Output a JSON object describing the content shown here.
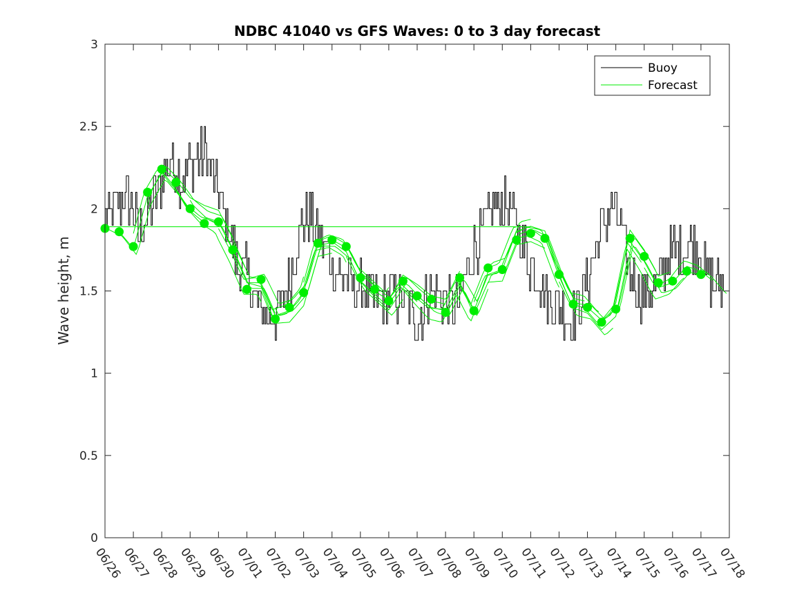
{
  "chart_data": {
    "type": "line",
    "title": "NDBC 41040 vs GFS Waves: 0 to 3 day forecast",
    "xlabel": "",
    "ylabel": "Wave height, m",
    "ylim": [
      0,
      3
    ],
    "yticks": [
      "0",
      "0.5",
      "1",
      "1.5",
      "2",
      "2.5",
      "3"
    ],
    "xticks": [
      "06/26",
      "06/27",
      "06/28",
      "06/29",
      "06/30",
      "07/01",
      "07/02",
      "07/03",
      "07/04",
      "07/05",
      "07/06",
      "07/07",
      "07/08",
      "07/09",
      "07/10",
      "07/11",
      "07/12",
      "07/13",
      "07/14",
      "07/15",
      "07/16",
      "07/17",
      "07/18"
    ],
    "x_unit": "day index from 06/26",
    "xlim": [
      0,
      22
    ],
    "legend": {
      "position": "top-right",
      "entries": [
        "Buoy",
        "Forecast"
      ]
    },
    "colors": {
      "buoy": "#000000",
      "forecast": "#00ee00"
    },
    "buoy_anchors": {
      "x": [
        0,
        0.3,
        0.6,
        0.9,
        1.2,
        1.5,
        1.8,
        2.1,
        2.3,
        2.6,
        2.9,
        3.2,
        3.5,
        3.8,
        4.1,
        4.4,
        4.7,
        5.0,
        5.3,
        5.6,
        5.9,
        6.2,
        6.5,
        6.8,
        7.1,
        7.4,
        7.7,
        8.0,
        8.3,
        8.6,
        8.9,
        9.2,
        9.5,
        9.8,
        10.1,
        10.4,
        10.7,
        11.0,
        11.3,
        11.6,
        11.9,
        12.2,
        12.5,
        12.8,
        13.1,
        13.4,
        13.7,
        14.0,
        14.3,
        14.6,
        14.9,
        15.2,
        15.5,
        15.8,
        16.1,
        16.4,
        16.7,
        17.0,
        17.3,
        17.6,
        17.9,
        18.2,
        18.5,
        18.8,
        19.1,
        19.4,
        19.7,
        20.0,
        20.3,
        20.6,
        20.9,
        21.2,
        21.5,
        21.8
      ],
      "y": [
        1.95,
        2.0,
        2.05,
        2.05,
        1.85,
        1.95,
        2.1,
        2.2,
        2.3,
        2.2,
        2.25,
        2.3,
        2.35,
        2.2,
        2.0,
        1.85,
        1.65,
        1.6,
        1.45,
        1.35,
        1.35,
        1.4,
        1.55,
        1.85,
        1.95,
        1.9,
        1.8,
        1.65,
        1.6,
        1.55,
        1.5,
        1.5,
        1.45,
        1.45,
        1.5,
        1.45,
        1.4,
        1.3,
        1.45,
        1.5,
        1.45,
        1.4,
        1.45,
        1.65,
        1.8,
        1.9,
        2.0,
        2.0,
        2.0,
        1.85,
        1.7,
        1.6,
        1.5,
        1.45,
        1.4,
        1.35,
        1.4,
        1.55,
        1.75,
        1.95,
        2.0,
        1.85,
        1.6,
        1.5,
        1.5,
        1.55,
        1.65,
        1.75,
        1.75,
        1.8,
        1.75,
        1.6,
        1.55,
        1.5
      ]
    },
    "buoy_peak_max": 2.6,
    "buoy_trough_min": 1.1,
    "forecast_anchors": {
      "x": [
        0,
        0.5,
        1.0,
        1.5,
        2.0,
        2.5,
        3.0,
        3.5,
        4.0,
        4.5,
        5.0,
        5.5,
        6.0,
        6.5,
        7.0,
        7.5,
        8.0,
        8.5,
        9.0,
        9.5,
        10.0,
        10.5,
        11.0,
        11.5,
        12.0,
        12.5,
        13.0,
        13.5,
        14.0,
        14.5,
        15.0,
        15.5,
        16.0,
        16.5,
        17.0,
        17.5,
        18.0,
        18.5,
        19.0,
        19.5,
        20.0,
        20.5,
        21.0,
        21.5,
        22.0
      ],
      "y": [
        1.88,
        1.86,
        1.77,
        2.1,
        2.25,
        2.15,
        2.02,
        1.95,
        1.92,
        1.75,
        1.55,
        1.55,
        1.35,
        1.38,
        1.48,
        1.78,
        1.8,
        1.75,
        1.58,
        1.5,
        1.42,
        1.55,
        1.47,
        1.4,
        1.38,
        1.55,
        1.38,
        1.6,
        1.63,
        1.85,
        1.87,
        1.83,
        1.6,
        1.42,
        1.4,
        1.3,
        1.38,
        1.8,
        1.68,
        1.52,
        1.55,
        1.65,
        1.62,
        1.55,
        1.45
      ]
    },
    "forecast_flat_line": {
      "x": [
        0,
        15
      ],
      "y": 1.89
    },
    "forecast_points": {
      "x": [
        0,
        0.5,
        1.0,
        1.5,
        2.0,
        2.5,
        3.0,
        3.5,
        4.0,
        4.5,
        5.0,
        5.5,
        6.0,
        6.5,
        7.0,
        7.5,
        8.0,
        8.5,
        9.0,
        9.5,
        10.0,
        10.5,
        11.0,
        11.5,
        12.0,
        12.5,
        13.0,
        13.5,
        14.0,
        14.5,
        15.0,
        15.5,
        16.0,
        16.5,
        17.0,
        17.5,
        18.0,
        18.5,
        19.0,
        19.5,
        20.0,
        20.5,
        21.0
      ],
      "y": [
        1.88,
        1.86,
        1.77,
        2.1,
        2.24,
        2.16,
        2.0,
        1.91,
        1.92,
        1.75,
        1.51,
        1.57,
        1.33,
        1.4,
        1.49,
        1.79,
        1.81,
        1.77,
        1.58,
        1.51,
        1.44,
        1.56,
        1.47,
        1.45,
        1.37,
        1.58,
        1.38,
        1.64,
        1.63,
        1.81,
        1.85,
        1.82,
        1.6,
        1.42,
        1.4,
        1.31,
        1.39,
        1.82,
        1.71,
        1.55,
        1.56,
        1.62,
        1.6
      ]
    }
  }
}
